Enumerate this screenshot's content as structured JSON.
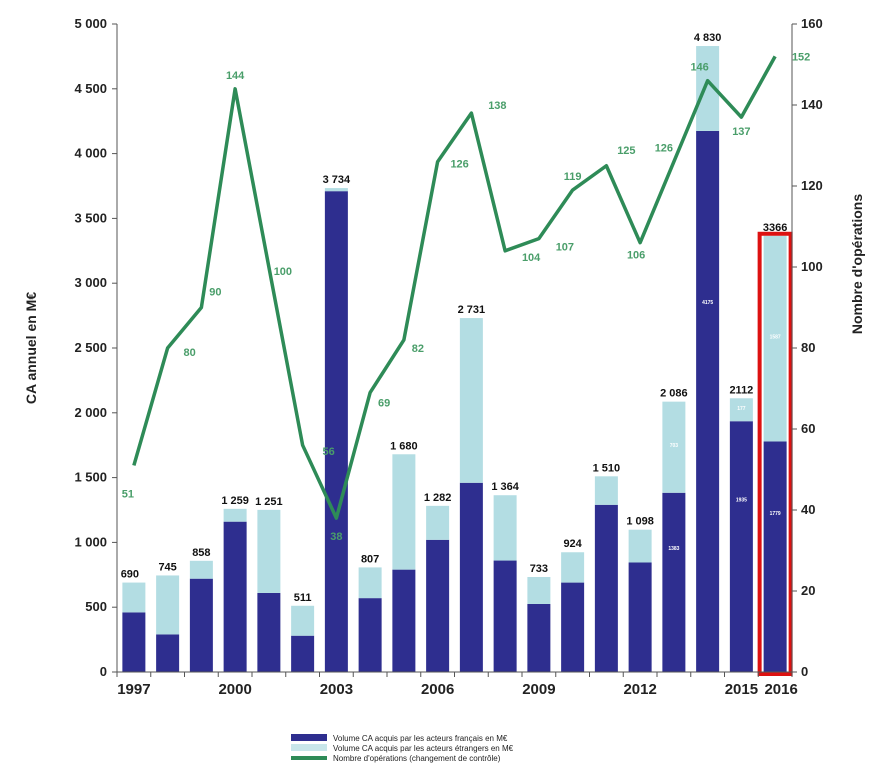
{
  "chart_data": {
    "type": "bar",
    "categories": [
      "1997",
      "1998",
      "1999",
      "2000",
      "2001",
      "2002",
      "2003",
      "2004",
      "2005",
      "2006",
      "2007",
      "2008",
      "2009",
      "2010",
      "2011",
      "2012",
      "2013",
      "2014",
      "2015",
      "2016"
    ],
    "x_tick_labels": [
      "1997",
      "2000",
      "2003",
      "2006",
      "2009",
      "2012",
      "2015",
      "2016"
    ],
    "x_tick_categories": [
      "1997",
      "2000",
      "2003",
      "2006",
      "2009",
      "2012",
      "2015",
      "2016"
    ],
    "highlight_category": "2016",
    "highlight_color": "#dd1111",
    "ylabel": "CA annuel en M€",
    "y2label": "Nombre d'opérations",
    "ylim": [
      0,
      5000
    ],
    "y2lim": [
      0,
      160
    ],
    "yticks": [
      0,
      500,
      1000,
      1500,
      2000,
      2500,
      3000,
      3500,
      4000,
      4500,
      5000
    ],
    "ytick_labels": [
      "0",
      "500",
      "1 000",
      "1 500",
      "2 000",
      "2 500",
      "3 000",
      "3 500",
      "4 000",
      "4 500",
      "5 000"
    ],
    "y2ticks": [
      0,
      20,
      40,
      60,
      80,
      100,
      120,
      140,
      160
    ],
    "y2tick_labels": [
      "0",
      "20",
      "40",
      "60",
      "80",
      "100",
      "120",
      "140",
      "160"
    ],
    "series": [
      {
        "name": "Volume CA acquis par les acteurs français en M€",
        "color": "#2e2e8f",
        "values": [
          460,
          290,
          720,
          1160,
          610,
          280,
          3710,
          570,
          790,
          1020,
          1460,
          860,
          525,
          690,
          1290,
          845,
          1383,
          4175,
          1935,
          1779
        ],
        "printed_labels": [
          null,
          null,
          null,
          null,
          null,
          null,
          null,
          null,
          null,
          null,
          null,
          null,
          null,
          null,
          null,
          null,
          "1383",
          "4175",
          "1935",
          "1779"
        ]
      },
      {
        "name": "Volume CA acquis par les acteurs étrangers en M€",
        "color": "#b3dde3",
        "values": [
          230,
          455,
          138,
          99,
          641,
          231,
          24,
          237,
          890,
          262,
          1271,
          504,
          208,
          234,
          220,
          253,
          703,
          655,
          177,
          1587
        ],
        "printed_labels": [
          null,
          null,
          null,
          null,
          null,
          null,
          null,
          null,
          null,
          null,
          null,
          null,
          null,
          null,
          null,
          null,
          "703",
          null,
          "177",
          "1587"
        ]
      },
      {
        "name": "Nombre d'opérations (changement de contrôle)",
        "color": "#2e8b57",
        "axis": "right",
        "type": "line",
        "values": [
          51,
          80,
          90,
          144,
          100,
          56,
          38,
          69,
          82,
          126,
          138,
          104,
          107,
          119,
          125,
          106,
          126,
          146,
          137,
          152
        ]
      }
    ],
    "totals": [
      690,
      745,
      858,
      1259,
      1251,
      511,
      3734,
      807,
      1680,
      1282,
      2731,
      1364,
      733,
      924,
      1510,
      1098,
      2086,
      4830,
      2112,
      3366
    ],
    "total_labels": [
      "690",
      "745",
      "858",
      "1 259",
      "1 251",
      "511",
      "3 734",
      "807",
      "1 680",
      "1 282",
      "2 731",
      "1 364",
      "733",
      "924",
      "1 510",
      "1 098",
      "2 086",
      "4 830",
      "2112",
      "3366"
    ],
    "count_labels": [
      "51",
      "80",
      "90",
      "144",
      "100",
      "56",
      "38",
      "69",
      "82",
      "126",
      "138",
      "104",
      "107",
      "119",
      "125",
      "106",
      "126",
      "146",
      "137",
      "152"
    ],
    "grid": false,
    "legend_position": "bottom"
  }
}
